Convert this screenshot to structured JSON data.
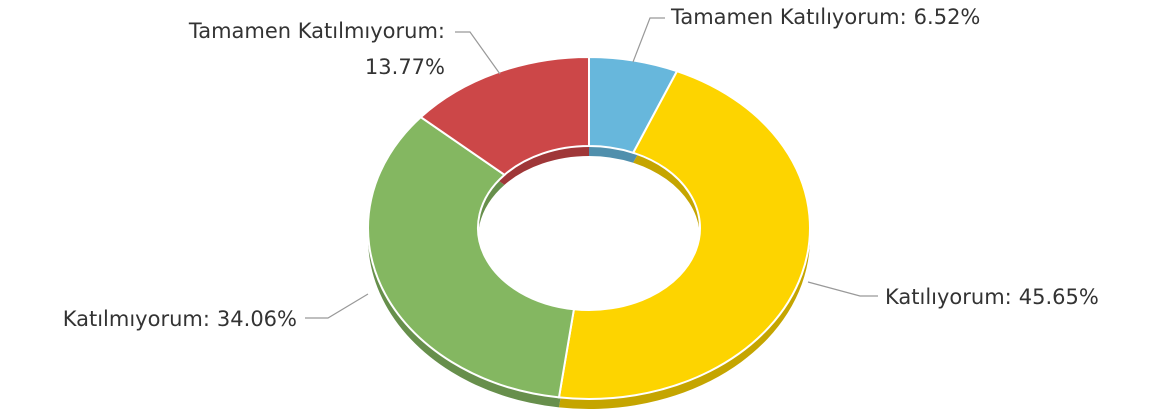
{
  "chart_data": {
    "type": "donut",
    "categories": [
      "Tamamen Katılıyorum:",
      "Katılıyorum:",
      "Katılmıyorum:",
      "Tamamen Katılmıyorum:"
    ],
    "values": [
      6.52,
      45.65,
      34.06,
      13.77
    ],
    "value_labels": [
      "6.52%",
      "45.65%",
      "34.06%",
      "13.77%"
    ],
    "colors": [
      "#67b7dc",
      "#fdd400",
      "#84b761",
      "#cc4748"
    ]
  }
}
